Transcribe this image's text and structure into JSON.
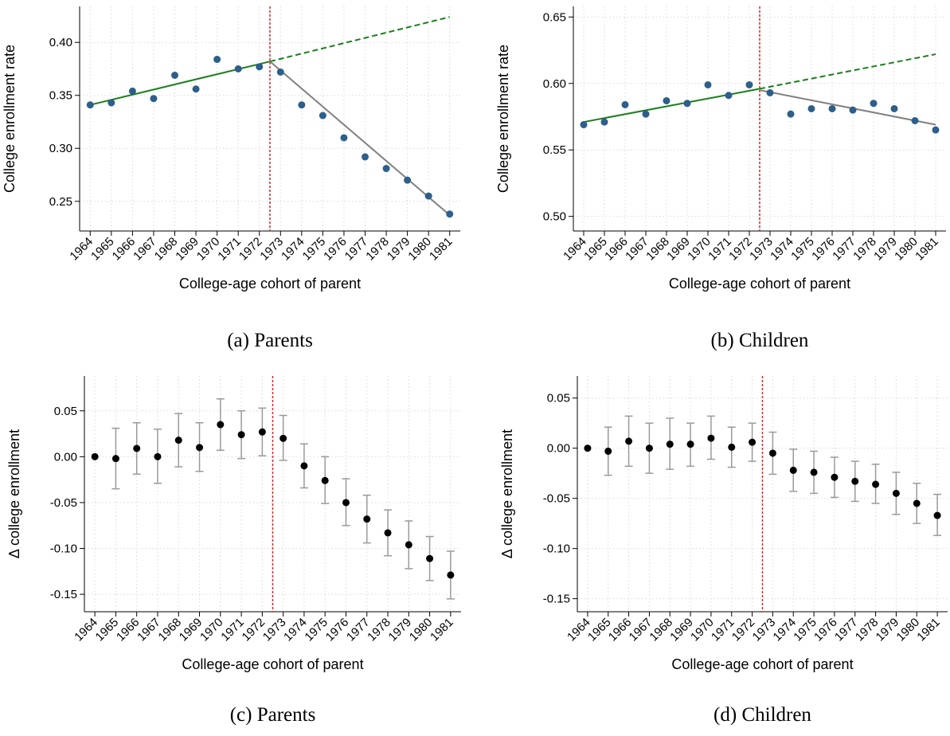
{
  "chart_data": [
    {
      "type": "scatter",
      "ylabel": "College enrollment rate",
      "xlabel": "College-age cohort of parent",
      "caption": "(a) Parents",
      "x": [
        1964,
        1965,
        1966,
        1967,
        1968,
        1969,
        1970,
        1971,
        1972,
        1973,
        1974,
        1975,
        1976,
        1977,
        1978,
        1979,
        1980,
        1981
      ],
      "values": [
        0.341,
        0.343,
        0.354,
        0.347,
        0.369,
        0.356,
        0.384,
        0.375,
        0.377,
        0.372,
        0.341,
        0.331,
        0.31,
        0.292,
        0.281,
        0.27,
        0.255,
        0.238
      ],
      "color": "#2d5f8a",
      "fit_lines": [
        {
          "x": [
            1964,
            1972.5
          ],
          "values": [
            0.341,
            0.382
          ],
          "color": "#1a7f1a",
          "style": "solid"
        },
        {
          "x": [
            1972.5,
            1981
          ],
          "values": [
            0.382,
            0.424
          ],
          "color": "#1a7f1a",
          "style": "dashed"
        },
        {
          "x": [
            1972.5,
            1981
          ],
          "values": [
            0.382,
            0.237
          ],
          "color": "#808080",
          "style": "solid"
        }
      ],
      "vline": 1972.5,
      "vline_color": "#d62728",
      "xlim": [
        1963.5,
        1981.5
      ],
      "xticks": [
        1964,
        1965,
        1966,
        1967,
        1968,
        1969,
        1970,
        1971,
        1972,
        1973,
        1974,
        1975,
        1976,
        1977,
        1978,
        1979,
        1980,
        1981
      ],
      "ylim": [
        0.222,
        0.434
      ],
      "yticks": [
        {
          "value": 0.25,
          "label": "0.25"
        },
        {
          "value": 0.3,
          "label": "0.30"
        },
        {
          "value": 0.35,
          "label": "0.35"
        },
        {
          "value": 0.4,
          "label": "0.40"
        }
      ],
      "grid": true
    },
    {
      "type": "scatter",
      "ylabel": "College enrollment rate",
      "xlabel": "College-age cohort of parent",
      "caption": "(b) Children",
      "x": [
        1964,
        1965,
        1966,
        1967,
        1968,
        1969,
        1970,
        1971,
        1972,
        1973,
        1974,
        1975,
        1976,
        1977,
        1978,
        1979,
        1980,
        1981
      ],
      "values": [
        0.569,
        0.571,
        0.584,
        0.577,
        0.587,
        0.585,
        0.599,
        0.591,
        0.599,
        0.593,
        0.577,
        0.581,
        0.581,
        0.58,
        0.585,
        0.581,
        0.572,
        0.565
      ],
      "color": "#2d5f8a",
      "fit_lines": [
        {
          "x": [
            1964,
            1972.5
          ],
          "values": [
            0.571,
            0.596
          ],
          "color": "#1a7f1a",
          "style": "solid"
        },
        {
          "x": [
            1972.5,
            1981
          ],
          "values": [
            0.596,
            0.622
          ],
          "color": "#1a7f1a",
          "style": "dashed"
        },
        {
          "x": [
            1972.5,
            1981
          ],
          "values": [
            0.595,
            0.569
          ],
          "color": "#808080",
          "style": "solid"
        }
      ],
      "vline": 1972.5,
      "vline_color": "#d62728",
      "xlim": [
        1963.5,
        1981.5
      ],
      "xticks": [
        1964,
        1965,
        1966,
        1967,
        1968,
        1969,
        1970,
        1971,
        1972,
        1973,
        1974,
        1975,
        1976,
        1977,
        1978,
        1979,
        1980,
        1981
      ],
      "ylim": [
        0.489,
        0.658
      ],
      "yticks": [
        {
          "value": 0.5,
          "label": "0.50"
        },
        {
          "value": 0.55,
          "label": "0.55"
        },
        {
          "value": 0.6,
          "label": "0.60"
        },
        {
          "value": 0.65,
          "label": "0.65"
        }
      ],
      "grid": true
    },
    {
      "type": "errorbar",
      "ylabel": "Δ college enrollment",
      "xlabel": "College-age cohort of parent",
      "caption": "(c) Parents",
      "x": [
        1964,
        1965,
        1966,
        1967,
        1968,
        1969,
        1970,
        1971,
        1972,
        1973,
        1974,
        1975,
        1976,
        1977,
        1978,
        1979,
        1980,
        1981
      ],
      "values": [
        0,
        -0.002,
        0.009,
        0.0,
        0.018,
        0.01,
        0.035,
        0.024,
        0.027,
        0.02,
        -0.01,
        -0.026,
        -0.05,
        -0.068,
        -0.083,
        -0.096,
        -0.111,
        -0.129
      ],
      "ci_low": [
        null,
        -0.035,
        -0.019,
        -0.029,
        -0.011,
        -0.016,
        0.007,
        -0.002,
        0.001,
        -0.004,
        -0.034,
        -0.051,
        -0.075,
        -0.094,
        -0.108,
        -0.122,
        -0.135,
        -0.155
      ],
      "ci_high": [
        null,
        0.031,
        0.037,
        0.03,
        0.047,
        0.037,
        0.063,
        0.05,
        0.053,
        0.045,
        0.014,
        0.0,
        -0.024,
        -0.042,
        -0.058,
        -0.07,
        -0.087,
        -0.103
      ],
      "color": "#000000",
      "ci_color": "#9a9a9a",
      "vline": 1972.5,
      "vline_color": "#d62728",
      "xlim": [
        1963.5,
        1981.5
      ],
      "xticks": [
        1964,
        1965,
        1966,
        1967,
        1968,
        1969,
        1970,
        1971,
        1972,
        1973,
        1974,
        1975,
        1976,
        1977,
        1978,
        1979,
        1980,
        1981
      ],
      "ylim": [
        -0.169,
        0.088
      ],
      "yticks": [
        {
          "value": -0.15,
          "label": "-0.15"
        },
        {
          "value": -0.1,
          "label": "-0.10"
        },
        {
          "value": -0.05,
          "label": "-0.05"
        },
        {
          "value": 0,
          "label": "0.00"
        },
        {
          "value": 0.05,
          "label": "0.05"
        }
      ],
      "grid": true
    },
    {
      "type": "errorbar",
      "ylabel": "Δ college enrollment",
      "xlabel": "College-age cohort of parent",
      "caption": "(d) Children",
      "x": [
        1964,
        1965,
        1966,
        1967,
        1968,
        1969,
        1970,
        1971,
        1972,
        1973,
        1974,
        1975,
        1976,
        1977,
        1978,
        1979,
        1980,
        1981
      ],
      "values": [
        0,
        -0.003,
        0.007,
        0.0,
        0.004,
        0.004,
        0.01,
        0.001,
        0.006,
        -0.005,
        -0.022,
        -0.024,
        -0.029,
        -0.033,
        -0.036,
        -0.045,
        -0.055,
        -0.067
      ],
      "ci_low": [
        null,
        -0.027,
        -0.018,
        -0.025,
        -0.021,
        -0.018,
        -0.011,
        -0.019,
        -0.013,
        -0.026,
        -0.043,
        -0.045,
        -0.049,
        -0.053,
        -0.055,
        -0.066,
        -0.075,
        -0.087
      ],
      "ci_high": [
        null,
        0.021,
        0.032,
        0.025,
        0.03,
        0.025,
        0.032,
        0.021,
        0.025,
        0.016,
        -0.001,
        -0.003,
        -0.009,
        -0.013,
        -0.016,
        -0.024,
        -0.035,
        -0.046
      ],
      "color": "#000000",
      "ci_color": "#9a9a9a",
      "vline": 1972.5,
      "vline_color": "#d62728",
      "xlim": [
        1963.5,
        1981.5
      ],
      "xticks": [
        1964,
        1965,
        1966,
        1967,
        1968,
        1969,
        1970,
        1971,
        1972,
        1973,
        1974,
        1975,
        1976,
        1977,
        1978,
        1979,
        1980,
        1981
      ],
      "ylim": [
        -0.163,
        0.072
      ],
      "yticks": [
        {
          "value": -0.15,
          "label": "-0.15"
        },
        {
          "value": -0.1,
          "label": "-0.10"
        },
        {
          "value": -0.05,
          "label": "-0.05"
        },
        {
          "value": 0,
          "label": "0.00"
        },
        {
          "value": 0.05,
          "label": "0.05"
        }
      ],
      "grid": true
    }
  ]
}
